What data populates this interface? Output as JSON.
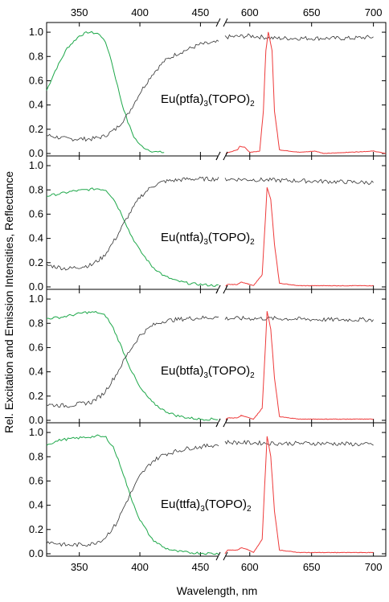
{
  "chart_data": {
    "type": "line",
    "xlabel": "Wavelength, nm",
    "ylabel": "Rel. Excitation and Emission Intensities, Reflectance",
    "x_ticks": [
      350,
      400,
      450,
      600,
      650,
      700
    ],
    "x_break": [
      465,
      580
    ],
    "xlim": [
      323,
      710
    ],
    "ylim": [
      -0.02,
      1.08
    ],
    "y_ticks": [
      "0.0",
      "0.2",
      "0.4",
      "0.6",
      "0.8",
      "1.0"
    ],
    "colors": {
      "excitation": "#1ea84a",
      "emission": "#ee3b3b",
      "reflectance": "#333333"
    },
    "panels": [
      {
        "label_base": "Eu(ptfa)",
        "label_sub1": "3",
        "label_mid": "(TOPO)",
        "label_sub2": "2",
        "excitation_points": [
          [
            323,
            0.52
          ],
          [
            330,
            0.68
          ],
          [
            340,
            0.87
          ],
          [
            350,
            0.97
          ],
          [
            357,
            1.0
          ],
          [
            365,
            0.99
          ],
          [
            370,
            0.95
          ],
          [
            375,
            0.82
          ],
          [
            380,
            0.62
          ],
          [
            385,
            0.42
          ],
          [
            390,
            0.26
          ],
          [
            395,
            0.14
          ],
          [
            400,
            0.07
          ],
          [
            405,
            0.04
          ],
          [
            410,
            0.02
          ],
          [
            415,
            0.01
          ],
          [
            420,
            0.01
          ]
        ],
        "reflectance_points": [
          [
            323,
            0.15
          ],
          [
            340,
            0.12
          ],
          [
            360,
            0.12
          ],
          [
            370,
            0.14
          ],
          [
            380,
            0.2
          ],
          [
            390,
            0.32
          ],
          [
            400,
            0.5
          ],
          [
            410,
            0.65
          ],
          [
            420,
            0.76
          ],
          [
            430,
            0.82
          ],
          [
            440,
            0.86
          ],
          [
            450,
            0.9
          ],
          [
            460,
            0.91
          ],
          [
            465,
            0.92
          ],
          [
            580,
            0.96
          ],
          [
            600,
            0.97
          ],
          [
            620,
            0.95
          ],
          [
            650,
            0.95
          ],
          [
            680,
            0.95
          ],
          [
            700,
            0.96
          ]
        ],
        "emission_points": [
          [
            580,
            0.0
          ],
          [
            590,
            0.03
          ],
          [
            592,
            0.06
          ],
          [
            596,
            0.05
          ],
          [
            600,
            0.01
          ],
          [
            608,
            0.02
          ],
          [
            611,
            0.35
          ],
          [
            613,
            0.85
          ],
          [
            615,
            1.0
          ],
          [
            618,
            0.85
          ],
          [
            620,
            0.35
          ],
          [
            624,
            0.03
          ],
          [
            640,
            0.01
          ],
          [
            653,
            0.02
          ],
          [
            660,
            0.0
          ],
          [
            700,
            0.02
          ],
          [
            710,
            0.0
          ]
        ]
      },
      {
        "label_base": "Eu(ntfa)",
        "label_sub1": "3",
        "label_mid": "(TOPO)",
        "label_sub2": "2",
        "excitation_points": [
          [
            323,
            0.75
          ],
          [
            335,
            0.77
          ],
          [
            345,
            0.79
          ],
          [
            355,
            0.8
          ],
          [
            365,
            0.81
          ],
          [
            372,
            0.8
          ],
          [
            378,
            0.73
          ],
          [
            385,
            0.6
          ],
          [
            392,
            0.44
          ],
          [
            400,
            0.3
          ],
          [
            410,
            0.17
          ],
          [
            420,
            0.09
          ],
          [
            430,
            0.05
          ],
          [
            440,
            0.03
          ],
          [
            450,
            0.02
          ],
          [
            465,
            0.01
          ]
        ],
        "reflectance_points": [
          [
            323,
            0.18
          ],
          [
            340,
            0.15
          ],
          [
            360,
            0.18
          ],
          [
            370,
            0.25
          ],
          [
            380,
            0.4
          ],
          [
            390,
            0.58
          ],
          [
            400,
            0.74
          ],
          [
            410,
            0.83
          ],
          [
            420,
            0.87
          ],
          [
            440,
            0.89
          ],
          [
            465,
            0.89
          ],
          [
            580,
            0.89
          ],
          [
            620,
            0.88
          ],
          [
            660,
            0.87
          ],
          [
            700,
            0.86
          ]
        ],
        "emission_points": [
          [
            580,
            0.0
          ],
          [
            582,
            0.02
          ],
          [
            590,
            0.02
          ],
          [
            593,
            0.04
          ],
          [
            597,
            0.03
          ],
          [
            603,
            0.01
          ],
          [
            610,
            0.1
          ],
          [
            612,
            0.45
          ],
          [
            614,
            0.82
          ],
          [
            617,
            0.72
          ],
          [
            620,
            0.35
          ],
          [
            624,
            0.03
          ],
          [
            640,
            0.01
          ],
          [
            653,
            0.01
          ],
          [
            700,
            0.01
          ]
        ]
      },
      {
        "label_base": "Eu(btfa)",
        "label_sub1": "3",
        "label_mid": "(TOPO)",
        "label_sub2": "2",
        "excitation_points": [
          [
            323,
            0.84
          ],
          [
            335,
            0.85
          ],
          [
            345,
            0.87
          ],
          [
            355,
            0.89
          ],
          [
            365,
            0.89
          ],
          [
            372,
            0.86
          ],
          [
            378,
            0.76
          ],
          [
            385,
            0.6
          ],
          [
            392,
            0.43
          ],
          [
            400,
            0.27
          ],
          [
            410,
            0.15
          ],
          [
            420,
            0.08
          ],
          [
            430,
            0.04
          ],
          [
            440,
            0.02
          ],
          [
            450,
            0.01
          ],
          [
            465,
            0.01
          ]
        ],
        "reflectance_points": [
          [
            323,
            0.13
          ],
          [
            340,
            0.12
          ],
          [
            360,
            0.15
          ],
          [
            370,
            0.22
          ],
          [
            380,
            0.37
          ],
          [
            390,
            0.55
          ],
          [
            400,
            0.7
          ],
          [
            410,
            0.78
          ],
          [
            420,
            0.82
          ],
          [
            440,
            0.84
          ],
          [
            465,
            0.85
          ],
          [
            580,
            0.84
          ],
          [
            620,
            0.84
          ],
          [
            660,
            0.83
          ],
          [
            700,
            0.83
          ]
        ],
        "emission_points": [
          [
            580,
            0.0
          ],
          [
            582,
            0.02
          ],
          [
            590,
            0.02
          ],
          [
            593,
            0.04
          ],
          [
            597,
            0.03
          ],
          [
            603,
            0.01
          ],
          [
            610,
            0.1
          ],
          [
            612,
            0.48
          ],
          [
            614,
            0.9
          ],
          [
            617,
            0.75
          ],
          [
            620,
            0.35
          ],
          [
            624,
            0.03
          ],
          [
            640,
            0.01
          ],
          [
            653,
            0.01
          ],
          [
            700,
            0.01
          ]
        ]
      },
      {
        "label_base": "Eu(ttfa)",
        "label_sub1": "3",
        "label_mid": "(TOPO)",
        "label_sub2": "2",
        "excitation_points": [
          [
            323,
            0.9
          ],
          [
            335,
            0.94
          ],
          [
            345,
            0.95
          ],
          [
            355,
            0.96
          ],
          [
            365,
            0.97
          ],
          [
            372,
            0.96
          ],
          [
            378,
            0.88
          ],
          [
            385,
            0.7
          ],
          [
            392,
            0.48
          ],
          [
            400,
            0.28
          ],
          [
            410,
            0.12
          ],
          [
            420,
            0.05
          ],
          [
            430,
            0.02
          ],
          [
            440,
            0.01
          ],
          [
            465,
            0.0
          ]
        ],
        "reflectance_points": [
          [
            323,
            0.1
          ],
          [
            340,
            0.07
          ],
          [
            360,
            0.08
          ],
          [
            370,
            0.12
          ],
          [
            380,
            0.24
          ],
          [
            390,
            0.45
          ],
          [
            400,
            0.64
          ],
          [
            410,
            0.76
          ],
          [
            420,
            0.82
          ],
          [
            440,
            0.87
          ],
          [
            465,
            0.9
          ],
          [
            580,
            0.92
          ],
          [
            620,
            0.91
          ],
          [
            660,
            0.91
          ],
          [
            700,
            0.9
          ]
        ],
        "emission_points": [
          [
            580,
            0.0
          ],
          [
            582,
            0.03
          ],
          [
            590,
            0.03
          ],
          [
            593,
            0.05
          ],
          [
            597,
            0.04
          ],
          [
            603,
            0.01
          ],
          [
            610,
            0.12
          ],
          [
            612,
            0.55
          ],
          [
            614,
            0.97
          ],
          [
            617,
            0.8
          ],
          [
            620,
            0.35
          ],
          [
            624,
            0.03
          ],
          [
            640,
            0.01
          ],
          [
            653,
            0.01
          ],
          [
            700,
            0.01
          ]
        ]
      }
    ]
  }
}
